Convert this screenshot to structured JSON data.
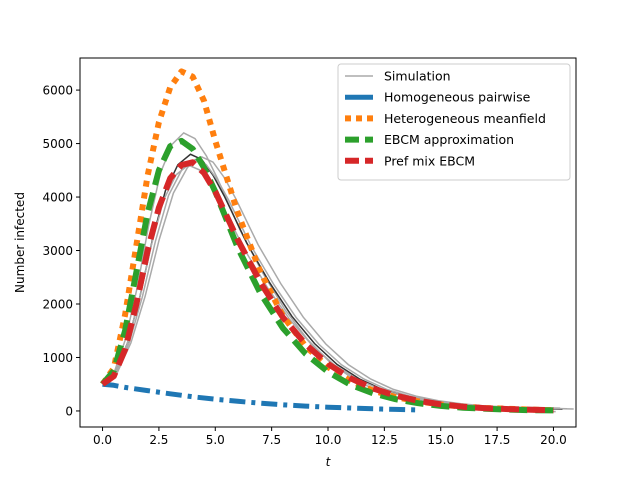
{
  "chart_data": {
    "type": "line",
    "title": "",
    "xlabel": "t",
    "ylabel": "Number infected",
    "xlim": [
      -1.0,
      21.0
    ],
    "ylim": [
      -300,
      6600
    ],
    "xticks": [
      0.0,
      2.5,
      5.0,
      7.5,
      10.0,
      12.5,
      15.0,
      17.5,
      20.0
    ],
    "xtick_labels": [
      "0.0",
      "2.5",
      "5.0",
      "7.5",
      "10.0",
      "12.5",
      "15.0",
      "17.5",
      "20.0"
    ],
    "yticks": [
      0,
      1000,
      2000,
      3000,
      4000,
      5000,
      6000
    ],
    "ytick_labels": [
      "0",
      "1000",
      "2000",
      "3000",
      "4000",
      "5000",
      "6000"
    ],
    "grid": false,
    "legend_position": "top-right",
    "simulation_peaks": [
      {
        "peak_t": 3.6,
        "peak_y": 5200
      },
      {
        "peak_t": 3.9,
        "peak_y": 4800
      },
      {
        "peak_t": 4.1,
        "peak_y": 4700
      },
      {
        "peak_t": 3.8,
        "peak_y": 4600
      },
      {
        "peak_t": 4.4,
        "peak_y": 4750
      }
    ],
    "series": [
      {
        "name": "Simulation",
        "color": "#aaaaaa",
        "style": "solid",
        "x": [
          0,
          0.5,
          1,
          1.5,
          2,
          2.5,
          3,
          3.5,
          4,
          4.5,
          5,
          6,
          7,
          8,
          9,
          10,
          11,
          12,
          13,
          14,
          15,
          16,
          17,
          18,
          19,
          20
        ],
        "y": [
          500,
          700,
          1300,
          2200,
          3300,
          4200,
          4700,
          4900,
          4800,
          4500,
          4100,
          3200,
          2450,
          1800,
          1280,
          880,
          600,
          400,
          270,
          180,
          120,
          80,
          55,
          40,
          30,
          20
        ]
      },
      {
        "name": "Homogeneous pairwise",
        "color": "#1f77b4",
        "style": "dashdot",
        "x": [
          0,
          0.5,
          1,
          2,
          3,
          4,
          5,
          6,
          7,
          8,
          9,
          10,
          11,
          12,
          13,
          14
        ],
        "y": [
          500,
          480,
          440,
          380,
          320,
          265,
          220,
          180,
          145,
          115,
          90,
          70,
          55,
          40,
          30,
          20
        ]
      },
      {
        "name": "Heterogeneous meanfield",
        "color": "#ff7f0e",
        "style": "dotted",
        "x": [
          0,
          0.5,
          1,
          1.5,
          2,
          2.5,
          3,
          3.5,
          4,
          4.5,
          5,
          6,
          7,
          8,
          9,
          10,
          11,
          12,
          13,
          14,
          15,
          16,
          17,
          18,
          19,
          20
        ],
        "y": [
          500,
          800,
          1800,
          3100,
          4400,
          5400,
          6050,
          6350,
          6250,
          5800,
          5050,
          3700,
          2600,
          1780,
          1210,
          820,
          560,
          380,
          260,
          180,
          120,
          80,
          55,
          40,
          25,
          15
        ]
      },
      {
        "name": "EBCM approximation",
        "color": "#2ca02c",
        "style": "dashed",
        "x": [
          0,
          0.5,
          1,
          1.5,
          2,
          2.5,
          3,
          3.5,
          4,
          4.5,
          5,
          6,
          7,
          8,
          9,
          10,
          11,
          12,
          13,
          14,
          15,
          16,
          17,
          18,
          19,
          20
        ],
        "y": [
          500,
          750,
          1500,
          2600,
          3700,
          4500,
          4950,
          5050,
          4900,
          4550,
          4100,
          3050,
          2200,
          1550,
          1070,
          730,
          490,
          330,
          220,
          145,
          95,
          60,
          40,
          25,
          15,
          10
        ]
      },
      {
        "name": "Pref mix EBCM",
        "color": "#d62728",
        "style": "dashed",
        "x": [
          0,
          0.5,
          1,
          1.5,
          2,
          2.5,
          3,
          3.5,
          4,
          4.5,
          5,
          6,
          7,
          8,
          9,
          10,
          11,
          12,
          13,
          14,
          15,
          16,
          17,
          18,
          19,
          20
        ],
        "y": [
          500,
          650,
          1150,
          2000,
          3000,
          3800,
          4350,
          4600,
          4650,
          4450,
          4100,
          3200,
          2400,
          1750,
          1250,
          880,
          610,
          420,
          285,
          190,
          125,
          80,
          52,
          35,
          22,
          14
        ]
      }
    ]
  }
}
